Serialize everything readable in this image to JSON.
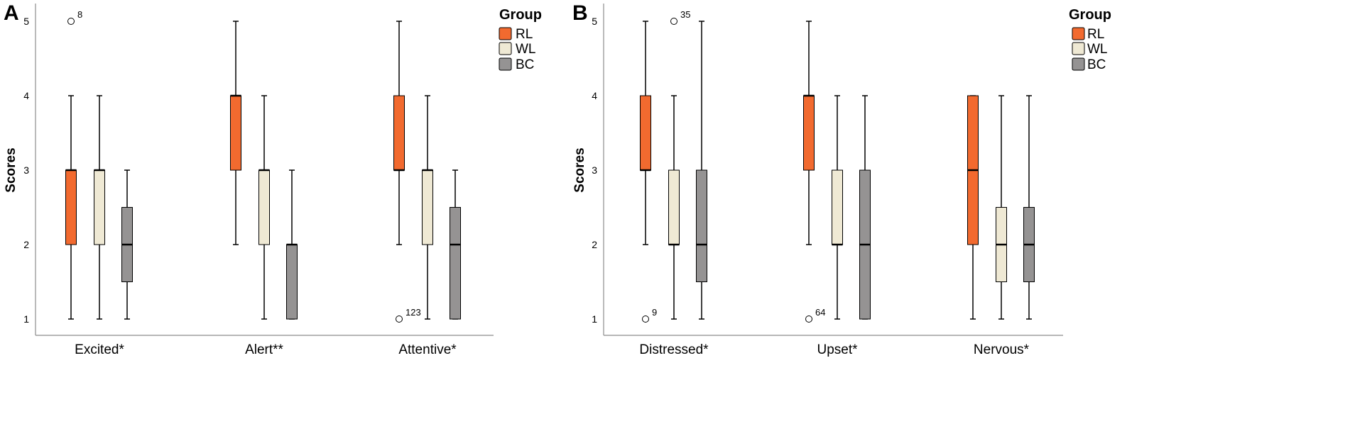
{
  "chart_data": [
    {
      "type": "boxplot",
      "panel_label": "A",
      "ylabel": "Scores",
      "ylim": [
        1,
        5
      ],
      "yticks": [
        "1",
        "2",
        "3",
        "4",
        "5"
      ],
      "legend": {
        "title": "Group",
        "placement": "top-right",
        "entries": [
          "RL",
          "WL",
          "BC"
        ]
      },
      "categories": [
        "Excited*",
        "Alert**",
        "Attentive*"
      ],
      "series": [
        {
          "name": "RL",
          "color": "#f26a2f",
          "boxes": [
            {
              "min": 1,
              "q1": 2,
              "median": 3,
              "q3": 3,
              "max": 4,
              "outliers": [
                {
                  "value": 5,
                  "label": "8"
                }
              ]
            },
            {
              "min": 2,
              "q1": 3,
              "median": 4,
              "q3": 4,
              "max": 5,
              "outliers": []
            },
            {
              "min": 2,
              "q1": 3,
              "median": 3,
              "q3": 4,
              "max": 5,
              "outliers": [
                {
                  "value": 1,
                  "label": "123"
                }
              ]
            }
          ]
        },
        {
          "name": "WL",
          "color": "#efe9d4",
          "boxes": [
            {
              "min": 1,
              "q1": 2,
              "median": 3,
              "q3": 3,
              "max": 4,
              "outliers": []
            },
            {
              "min": 1,
              "q1": 2,
              "median": 3,
              "q3": 3,
              "max": 4,
              "outliers": []
            },
            {
              "min": 1,
              "q1": 2,
              "median": 3,
              "q3": 3,
              "max": 4,
              "outliers": []
            }
          ]
        },
        {
          "name": "BC",
          "color": "#959393",
          "boxes": [
            {
              "min": 1,
              "q1": 1.5,
              "median": 2,
              "q3": 2.5,
              "max": 3,
              "outliers": []
            },
            {
              "min": 1,
              "q1": 1,
              "median": 2,
              "q3": 2,
              "max": 3,
              "outliers": []
            },
            {
              "min": 1,
              "q1": 1,
              "median": 2,
              "q3": 2.5,
              "max": 3,
              "outliers": []
            }
          ]
        }
      ]
    },
    {
      "type": "boxplot",
      "panel_label": "B",
      "ylabel": "Scores",
      "ylim": [
        1,
        5
      ],
      "yticks": [
        "1",
        "2",
        "3",
        "4",
        "5"
      ],
      "legend": {
        "title": "Group",
        "placement": "top-right",
        "entries": [
          "RL",
          "WL",
          "BC"
        ]
      },
      "categories": [
        "Distressed*",
        "Upset*",
        "Nervous*"
      ],
      "series": [
        {
          "name": "RL",
          "color": "#f26a2f",
          "boxes": [
            {
              "min": 2,
              "q1": 3,
              "median": 3,
              "q3": 4,
              "max": 5,
              "outliers": [
                {
                  "value": 1,
                  "label": "9"
                }
              ]
            },
            {
              "min": 2,
              "q1": 3,
              "median": 4,
              "q3": 4,
              "max": 5,
              "outliers": [
                {
                  "value": 1,
                  "label": "64"
                }
              ]
            },
            {
              "min": 1,
              "q1": 2,
              "median": 3,
              "q3": 4,
              "max": 4,
              "outliers": []
            }
          ]
        },
        {
          "name": "WL",
          "color": "#efe9d4",
          "boxes": [
            {
              "min": 1,
              "q1": 2,
              "median": 2,
              "q3": 3,
              "max": 4,
              "outliers": [
                {
                  "value": 5,
                  "label": "35"
                }
              ]
            },
            {
              "min": 1,
              "q1": 2,
              "median": 2,
              "q3": 3,
              "max": 4,
              "outliers": []
            },
            {
              "min": 1,
              "q1": 1.5,
              "median": 2,
              "q3": 2.5,
              "max": 4,
              "outliers": []
            }
          ]
        },
        {
          "name": "BC",
          "color": "#959393",
          "boxes": [
            {
              "min": 1,
              "q1": 1.5,
              "median": 2,
              "q3": 3,
              "max": 5,
              "outliers": []
            },
            {
              "min": 1,
              "q1": 1,
              "median": 2,
              "q3": 3,
              "max": 4,
              "outliers": []
            },
            {
              "min": 1,
              "q1": 1.5,
              "median": 2,
              "q3": 2.5,
              "max": 4,
              "outliers": []
            }
          ]
        }
      ]
    }
  ]
}
